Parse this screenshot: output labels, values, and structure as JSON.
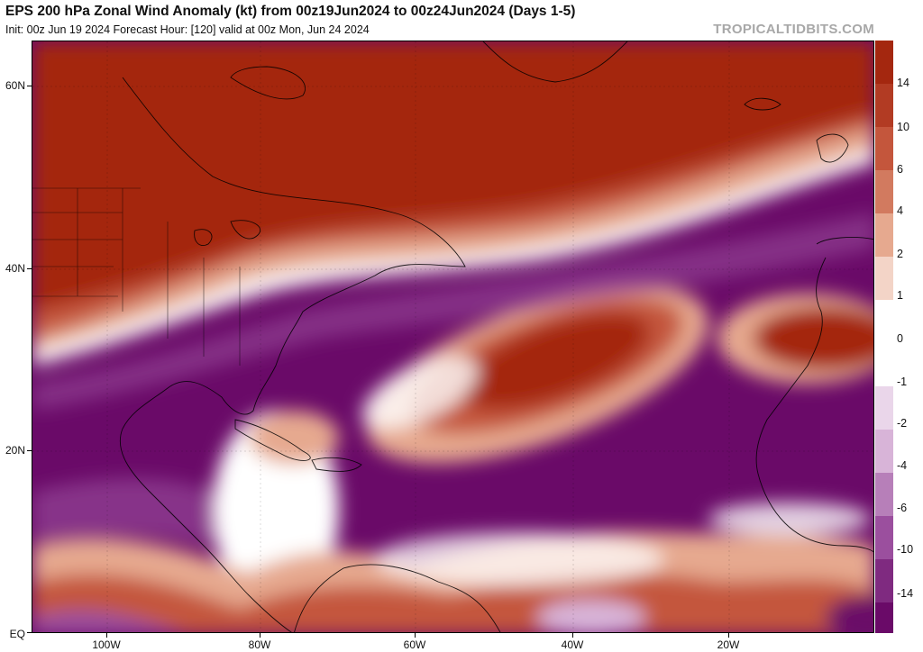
{
  "header": {
    "title": "EPS 200 hPa Zonal Wind Anomaly (kt) from 00z19Jun2024 to 00z24Jun2024 (Days 1-5)",
    "subtitle": "Init: 00z Jun 19 2024   Forecast Hour: [120]   valid at 00z Mon, Jun 24 2024",
    "brand": "TROPICALTIDBITS.COM"
  },
  "axes": {
    "lat_labels": [
      "60N",
      "40N",
      "20N",
      "EQ"
    ],
    "lon_labels": [
      "100W",
      "80W",
      "60W",
      "40W",
      "20W"
    ]
  },
  "colorbar": {
    "labels": [
      "14",
      "10",
      "6",
      "4",
      "2",
      "1",
      "0",
      "-1",
      "-2",
      "-4",
      "-6",
      "-10",
      "-14"
    ],
    "colors": {
      "pos_strong": "#a4270f",
      "pos_mid": "#c4563c",
      "pos_weak": "#e6a98f",
      "neutral": "#ffffff",
      "neg_weak": "#d8b4d8",
      "neg_mid": "#9b4f9e",
      "neg_strong": "#6a0a68"
    }
  }
}
